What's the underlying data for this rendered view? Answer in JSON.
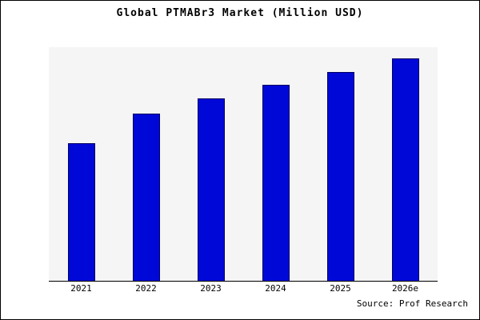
{
  "chart_data": {
    "type": "bar",
    "title": "Global PTMABr3 Market (Million USD)",
    "categories": [
      "2021",
      "2022",
      "2023",
      "2024",
      "2025",
      "2026e"
    ],
    "values": [
      62,
      75,
      82,
      88,
      94,
      100
    ],
    "xlabel": "",
    "ylabel": "",
    "ylim": [
      0,
      105
    ],
    "grid": false,
    "legend": "none",
    "bar_color": "#0008d8",
    "bar_edge_color": "#000060",
    "plot_bg": "#f5f5f5",
    "source": "Source: Prof Research"
  }
}
